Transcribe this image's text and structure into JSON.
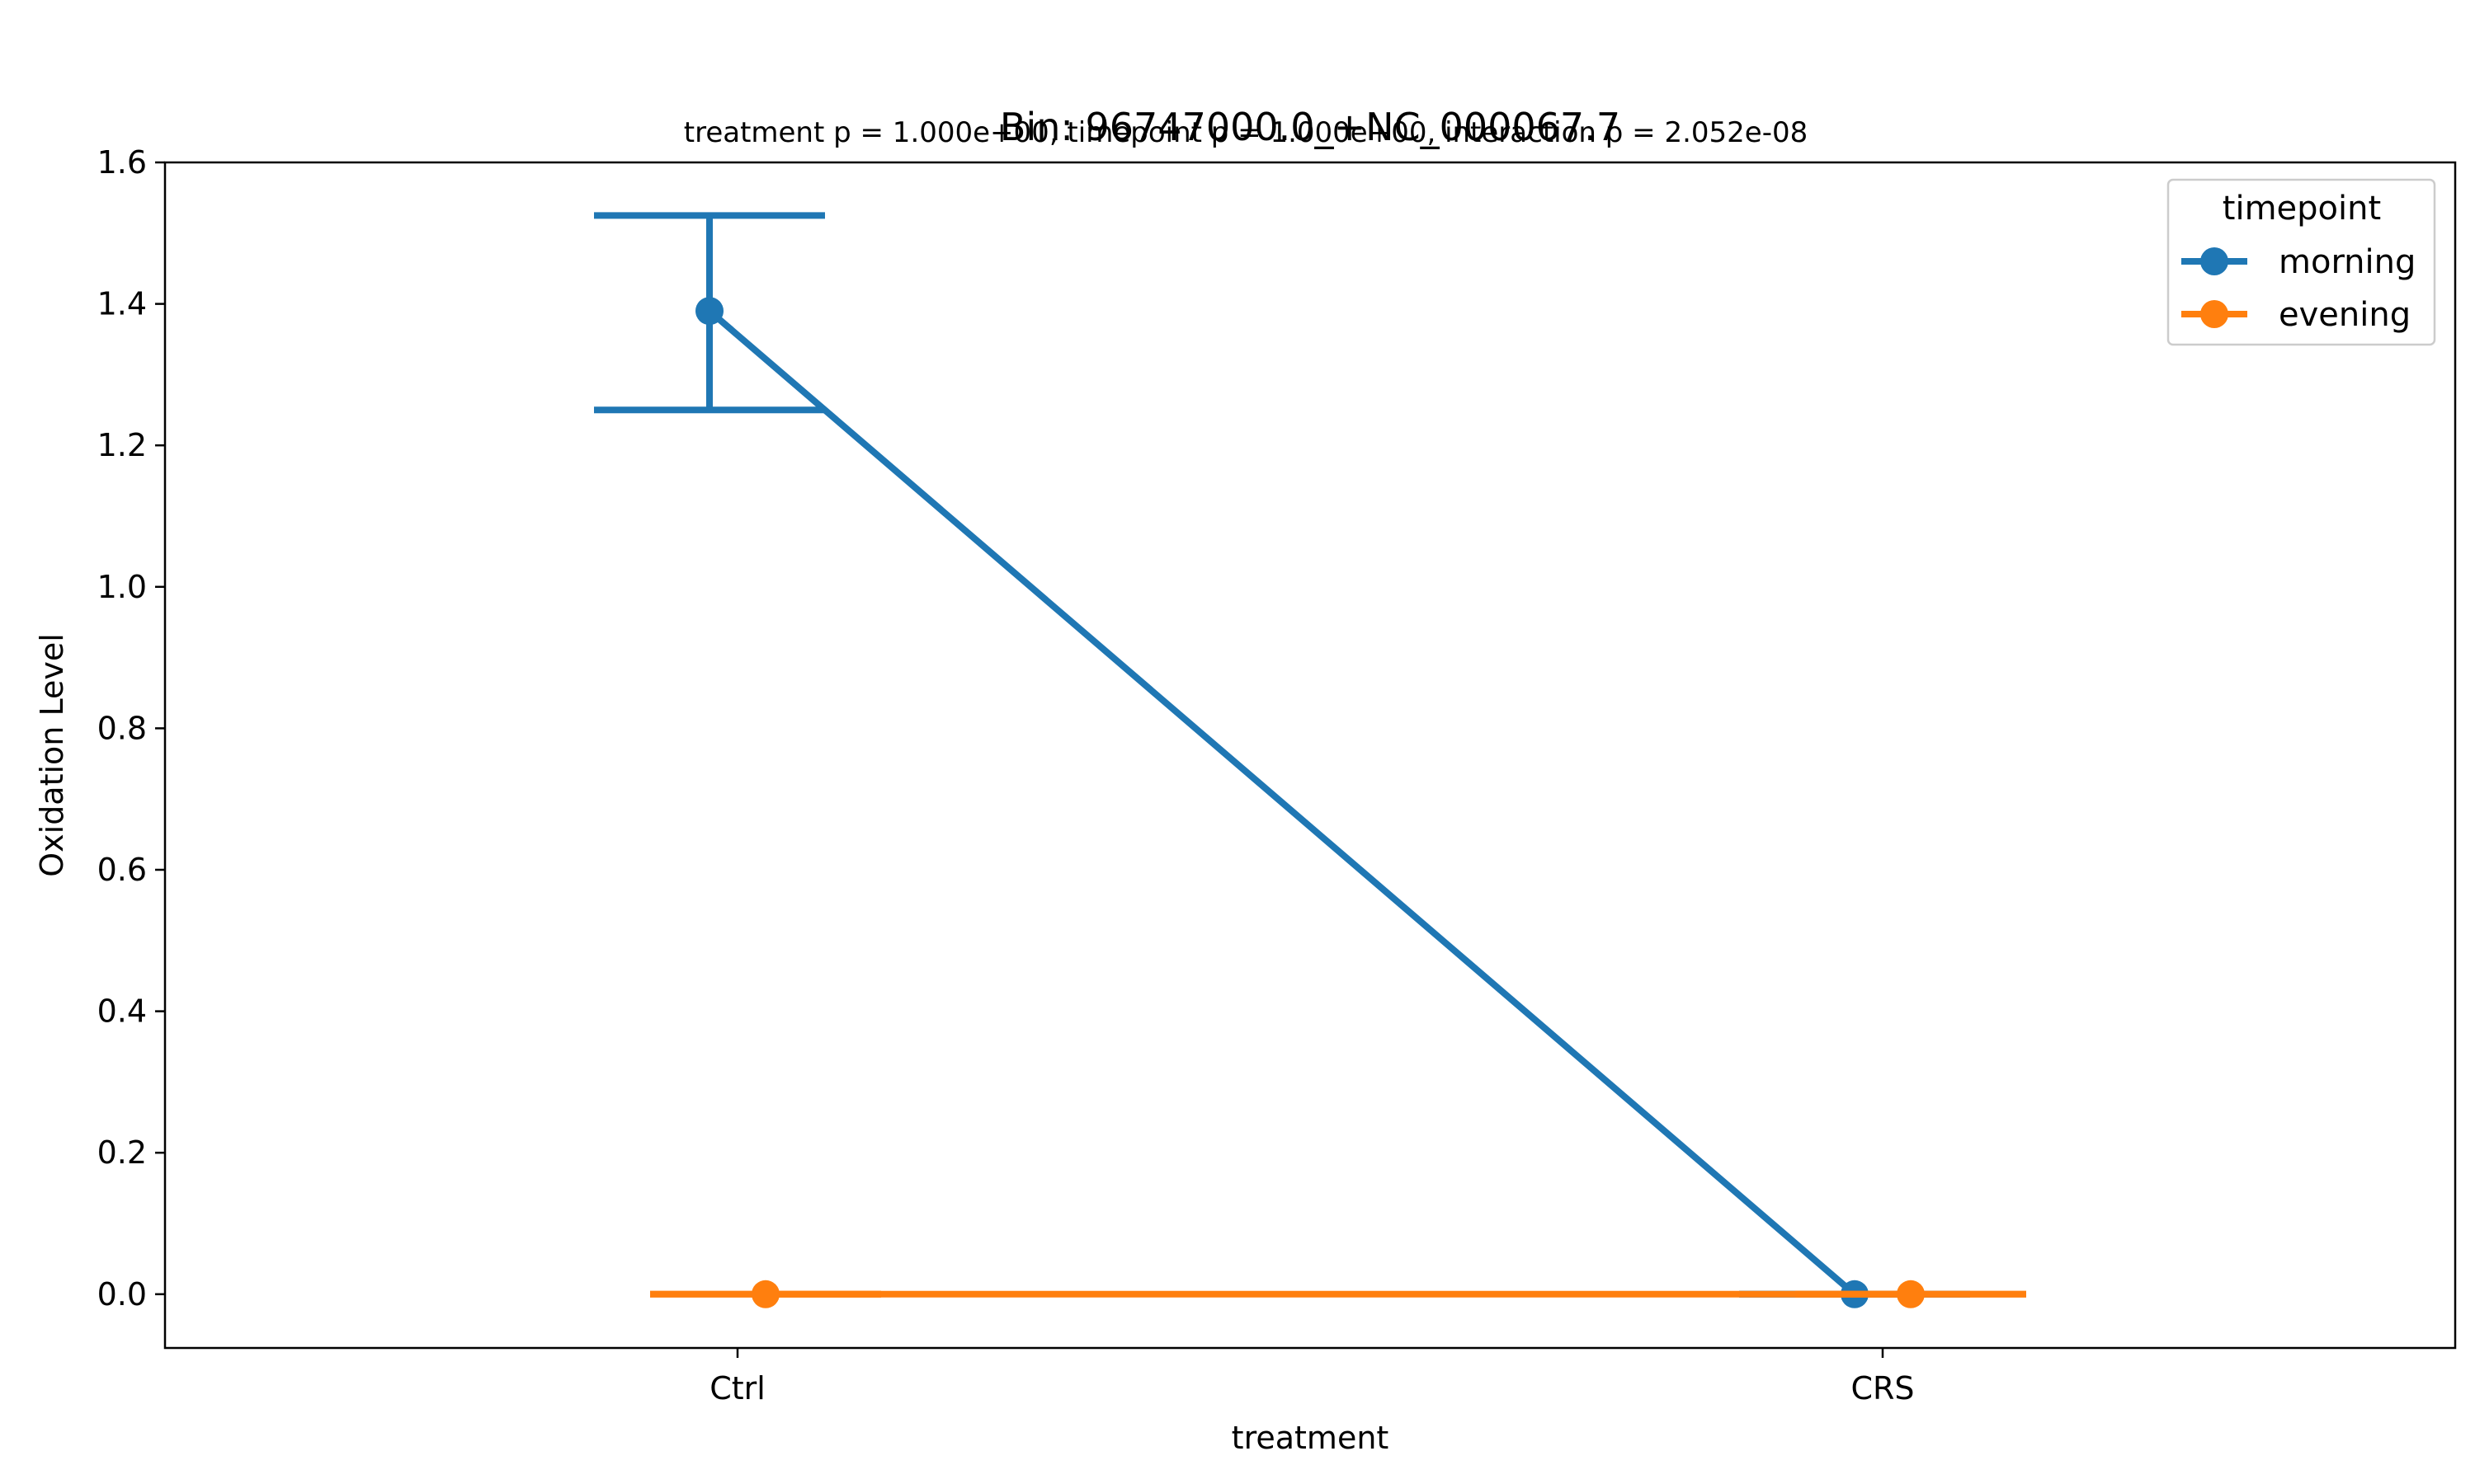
{
  "chart_data": {
    "type": "line",
    "title": "Bin: 96747000.0_+NC_000067.7",
    "subtitle": "treatment p = 1.000e+00, timepoint p = 1.000e+00, interaction p = 2.052e-08",
    "xlabel": "treatment",
    "ylabel": "Oxidation Level",
    "categories": [
      "Ctrl",
      "CRS"
    ],
    "ylim": [
      -0.076,
      1.6
    ],
    "yticks": [
      0.0,
      0.2,
      0.4,
      0.6,
      0.8,
      1.0,
      1.2,
      1.4,
      1.6
    ],
    "ytick_labels": [
      "0.0",
      "0.2",
      "0.4",
      "0.6",
      "0.8",
      "1.0",
      "1.2",
      "1.4",
      "1.6"
    ],
    "grid": false,
    "legend": {
      "title": "timepoint",
      "placement": "top-right"
    },
    "series": [
      {
        "name": "morning",
        "color": "#1f77b4",
        "values": [
          1.39,
          0.0
        ],
        "error_low": [
          1.25,
          0.0
        ],
        "error_high": [
          1.525,
          0.0
        ]
      },
      {
        "name": "evening",
        "color": "#ff7f0e",
        "values": [
          0.0,
          0.0
        ],
        "error_low": [
          0.0,
          0.0
        ],
        "error_high": [
          0.0,
          0.0
        ]
      }
    ]
  }
}
